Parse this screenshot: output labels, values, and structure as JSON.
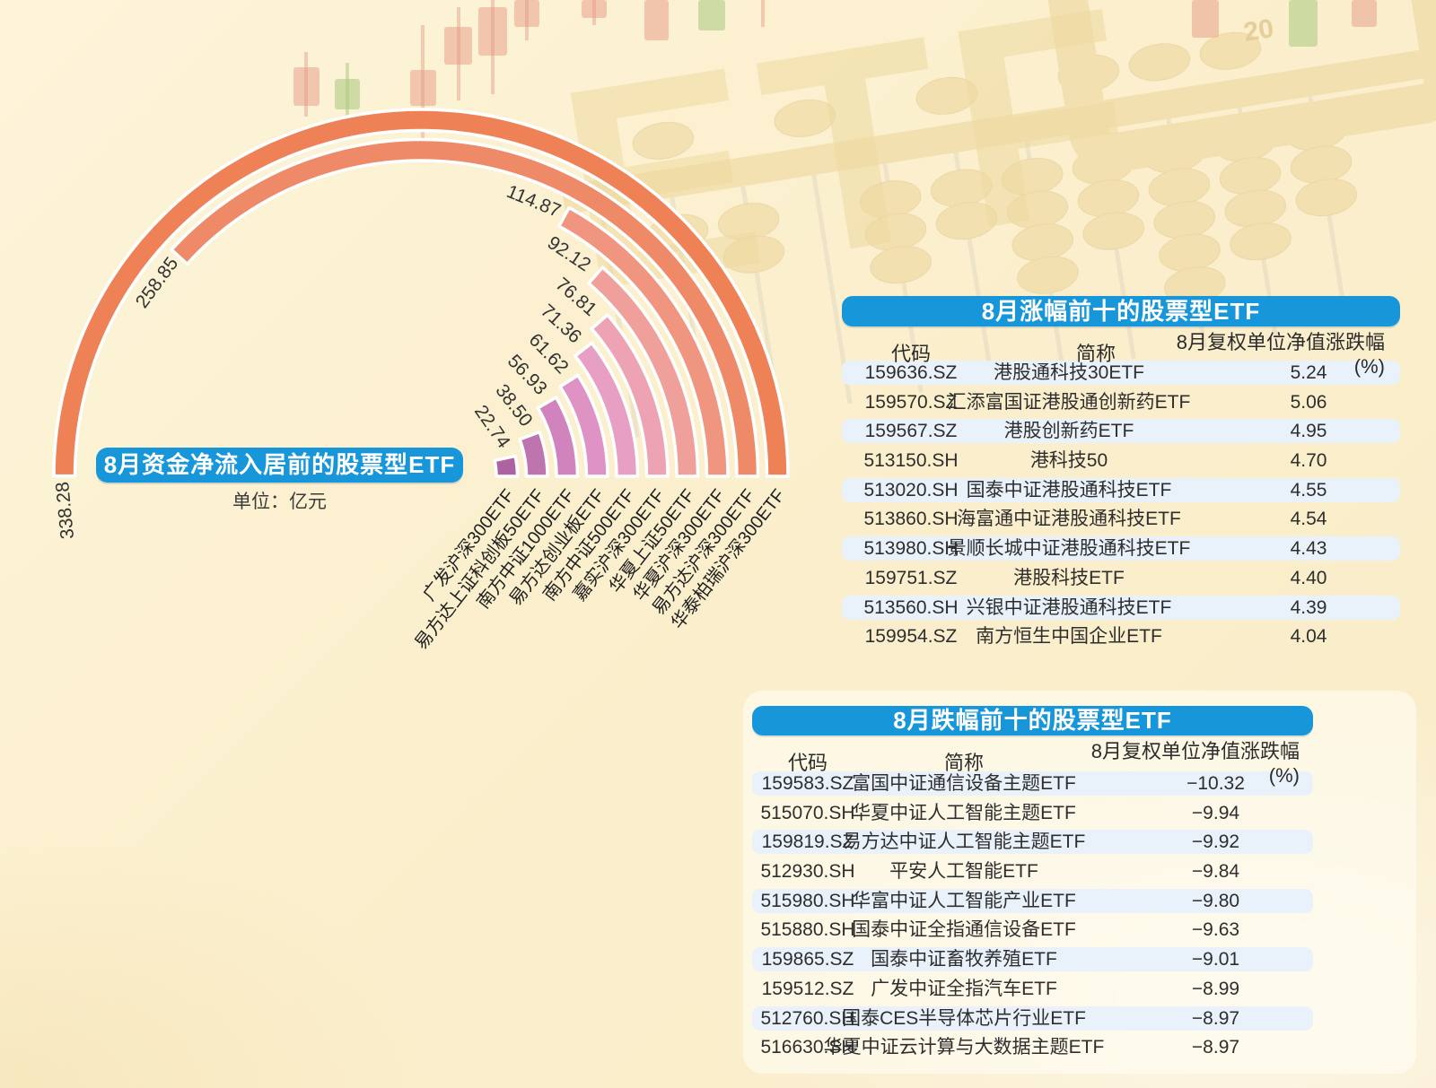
{
  "palette": {
    "page_bg": "#fbefcd",
    "banner_blue": "#1896da",
    "stripe_blue": "#e9f1fa",
    "text_dark": "#2e2e2e",
    "label_dark": "#333333",
    "white_outline": "#ffffff"
  },
  "decor": {
    "etf_watermark": "ETF",
    "abacus_number": "20",
    "gold": "#e9cd8d",
    "candle_red": "#e59a85",
    "candle_green": "#a8c87e"
  },
  "chart_data": [
    {
      "type": "bar",
      "subtype": "radial-semicircle",
      "title": "8月资金净流入居前的股票型ETF",
      "unit_label": "单位：亿元",
      "ylim": [
        0,
        338.28
      ],
      "order": "outermost-to-innermost",
      "categories": [
        "华泰柏瑞沪深300ETF",
        "易方达沪深300ETF",
        "华夏沪深300ETF",
        "华夏上证50ETF",
        "嘉实沪深300ETF",
        "南方中证500ETF",
        "易方达创业板ETF",
        "南方中证1000ETF",
        "易方达上证科创板50ETF",
        "广发沪深300ETF"
      ],
      "values": [
        338.28,
        258.85,
        114.87,
        92.12,
        76.81,
        71.36,
        61.62,
        56.93,
        38.5,
        22.74
      ],
      "value_labels": [
        "338.28",
        "258.85",
        "114.87",
        "92.12",
        "76.81",
        "71.36",
        "61.62",
        "56.93",
        "38.50",
        "22.74"
      ],
      "bar_colors": [
        "#ee8156",
        "#ef8a68",
        "#f0957f",
        "#f0a09b",
        "#eda3b4",
        "#e89fc4",
        "#df93c5",
        "#d083bc",
        "#bd74af",
        "#ad62a2"
      ]
    },
    {
      "type": "table",
      "title": "8月涨幅前十的股票型ETF",
      "columns": [
        "代码",
        "简称",
        "8月复权单位净值涨跌幅(%)"
      ],
      "rows": [
        [
          "159636.SZ",
          "港股通科技30ETF",
          "5.24"
        ],
        [
          "159570.SZ",
          "汇添富国证港股通创新药ETF",
          "5.06"
        ],
        [
          "159567.SZ",
          "港股创新药ETF",
          "4.95"
        ],
        [
          "513150.SH",
          "港科技50",
          "4.70"
        ],
        [
          "513020.SH",
          "国泰中证港股通科技ETF",
          "4.55"
        ],
        [
          "513860.SH",
          "海富通中证港股通科技ETF",
          "4.54"
        ],
        [
          "513980.SH",
          "景顺长城中证港股通科技ETF",
          "4.43"
        ],
        [
          "159751.SZ",
          "港股科技ETF",
          "4.40"
        ],
        [
          "513560.SH",
          "兴银中证港股通科技ETF",
          "4.39"
        ],
        [
          "159954.SZ",
          "南方恒生中国企业ETF",
          "4.04"
        ]
      ]
    },
    {
      "type": "table",
      "title": "8月跌幅前十的股票型ETF",
      "columns": [
        "代码",
        "简称",
        "8月复权单位净值涨跌幅(%)"
      ],
      "rows": [
        [
          "159583.SZ",
          "富国中证通信设备主题ETF",
          "−10.32"
        ],
        [
          "515070.SH",
          "华夏中证人工智能主题ETF",
          "−9.94"
        ],
        [
          "159819.SZ",
          "易方达中证人工智能主题ETF",
          "−9.92"
        ],
        [
          "512930.SH",
          "平安人工智能ETF",
          "−9.84"
        ],
        [
          "515980.SH",
          "华富中证人工智能产业ETF",
          "−9.80"
        ],
        [
          "515880.SH",
          "国泰中证全指通信设备ETF",
          "−9.63"
        ],
        [
          "159865.SZ",
          "国泰中证畜牧养殖ETF",
          "−9.01"
        ],
        [
          "159512.SZ",
          "广发中证全指汽车ETF",
          "−8.99"
        ],
        [
          "512760.SH",
          "国泰CES半导体芯片行业ETF",
          "−8.97"
        ],
        [
          "516630.SH",
          "华夏中证云计算与大数据主题ETF",
          "−8.97"
        ]
      ]
    }
  ]
}
